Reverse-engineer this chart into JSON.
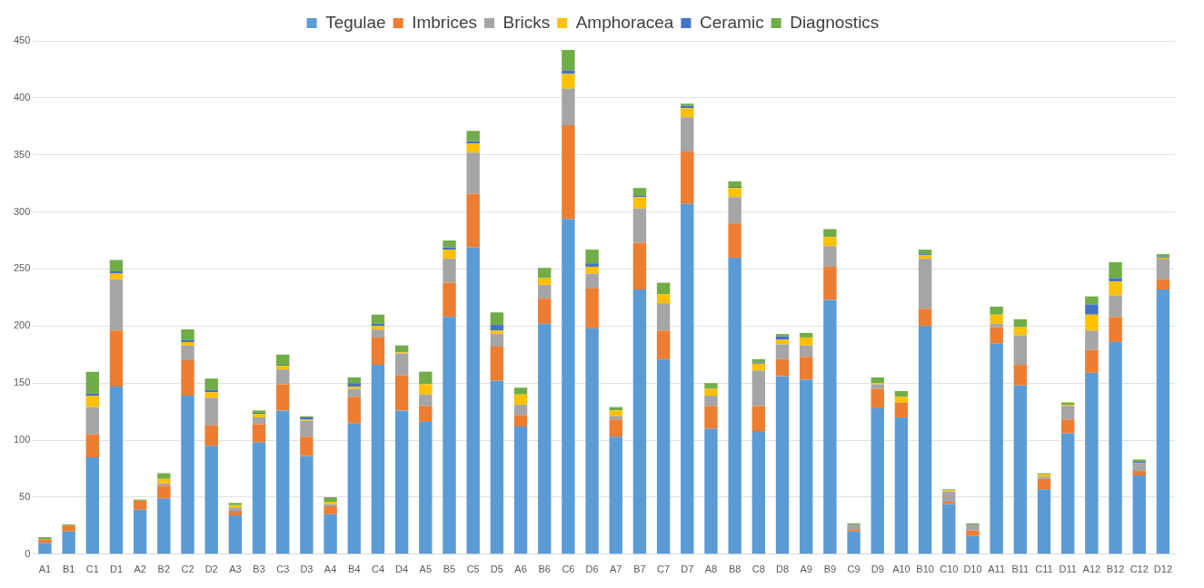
{
  "chart_data": {
    "type": "bar",
    "stacked": true,
    "legend": "top",
    "grid": "y",
    "categories": [
      "A1",
      "B1",
      "C1",
      "D1",
      "A2",
      "B2",
      "C2",
      "D2",
      "A3",
      "B3",
      "C3",
      "D3",
      "A4",
      "B4",
      "C4",
      "D4",
      "A5",
      "B5",
      "C5",
      "D5",
      "A6",
      "B6",
      "C6",
      "D6",
      "A7",
      "B7",
      "C7",
      "D7",
      "A8",
      "B8",
      "C8",
      "D8",
      "A9",
      "B9",
      "C9",
      "D9",
      "A10",
      "B10",
      "C10",
      "D10",
      "A11",
      "B11",
      "C11",
      "D11",
      "A12",
      "B12",
      "C12",
      "D12"
    ],
    "ylim": [
      0,
      450
    ],
    "yticks": [
      0,
      50,
      100,
      150,
      200,
      250,
      300,
      350,
      400,
      450
    ],
    "series": [
      {
        "name": "Tegulae",
        "color": "#5b9bd5",
        "values": [
          10,
          20,
          85,
          147,
          39,
          49,
          139,
          95,
          34,
          98,
          126,
          86,
          35,
          115,
          166,
          126,
          116,
          208,
          269,
          152,
          112,
          202,
          294,
          198,
          103,
          232,
          171,
          307,
          110,
          260,
          108,
          156,
          153,
          223,
          20,
          128,
          120,
          200,
          44,
          16,
          185,
          148,
          57,
          106,
          159,
          186,
          69,
          232
        ]
      },
      {
        "name": "Imbrices",
        "color": "#ed7d31",
        "values": [
          3,
          5,
          20,
          49,
          8,
          11,
          31,
          18,
          4,
          16,
          23,
          17,
          7,
          23,
          24,
          31,
          14,
          30,
          47,
          30,
          10,
          22,
          82,
          35,
          15,
          41,
          25,
          46,
          20,
          30,
          22,
          15,
          20,
          29,
          2,
          17,
          13,
          15,
          2,
          5,
          14,
          18,
          9,
          12,
          20,
          22,
          4,
          9
        ]
      },
      {
        "name": "Bricks",
        "color": "#a5a5a5",
        "values": [
          0,
          0,
          24,
          45,
          0,
          2,
          13,
          24,
          3,
          6,
          13,
          14,
          2,
          7,
          7,
          19,
          10,
          21,
          36,
          11,
          9,
          12,
          32,
          13,
          3,
          30,
          24,
          30,
          9,
          23,
          31,
          13,
          10,
          18,
          4,
          4,
          0,
          44,
          9,
          5,
          3,
          26,
          2,
          12,
          17,
          19,
          7,
          18
        ]
      },
      {
        "name": "Amphoracea",
        "color": "#ffc000",
        "values": [
          0,
          0,
          10,
          5,
          0,
          4,
          3,
          5,
          2,
          3,
          3,
          1,
          2,
          2,
          3,
          1,
          9,
          8,
          8,
          3,
          9,
          6,
          13,
          6,
          5,
          10,
          8,
          8,
          6,
          8,
          6,
          4,
          7,
          8,
          0,
          1,
          5,
          3,
          1,
          0,
          8,
          7,
          2,
          1,
          14,
          12,
          0,
          1
        ]
      },
      {
        "name": "Ceramic",
        "color": "#4472c4",
        "values": [
          0,
          0,
          2,
          2,
          0,
          0,
          2,
          2,
          0,
          1,
          1,
          2,
          0,
          3,
          2,
          0,
          0,
          2,
          2,
          5,
          0,
          0,
          3,
          3,
          0,
          1,
          0,
          2,
          0,
          1,
          1,
          3,
          0,
          0,
          0,
          0,
          0,
          1,
          0,
          0,
          0,
          0,
          0,
          0,
          9,
          3,
          1,
          1
        ]
      },
      {
        "name": "Diagnostics",
        "color": "#70ad47",
        "values": [
          2,
          1,
          19,
          10,
          1,
          5,
          9,
          10,
          2,
          2,
          9,
          1,
          4,
          5,
          8,
          6,
          11,
          6,
          9,
          11,
          6,
          9,
          18,
          12,
          3,
          7,
          10,
          2,
          5,
          5,
          3,
          2,
          4,
          7,
          1,
          5,
          5,
          4,
          1,
          1,
          7,
          7,
          1,
          2,
          7,
          14,
          2,
          2
        ]
      }
    ]
  }
}
